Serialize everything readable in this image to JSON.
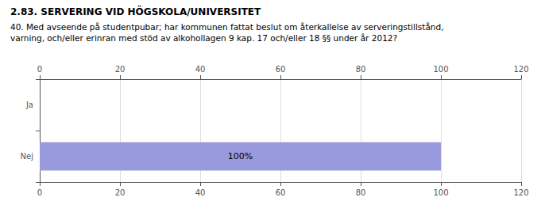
{
  "chart_data": {
    "type": "bar",
    "orientation": "horizontal",
    "title": "2.83. SERVERING VID HÖGSKOLA/UNIVERSITET",
    "annotations": [
      "40. Med avseende på studentpubar; har kommunen fattat beslut om återkallelse av serveringstillstånd,",
      "varning, och/eller erinran med stöd av alkohollagen 9 kap. 17 och/eller 18 §§ under år 2012?"
    ],
    "categories": [
      "Nej",
      "Ja"
    ],
    "values": [
      100,
      0
    ],
    "data_labels": true,
    "value_labels": [
      "100%",
      null
    ],
    "color": "#9999dd",
    "xlim": [
      0,
      120
    ],
    "xticks": [
      0,
      20,
      40,
      60,
      80,
      100,
      120
    ],
    "grid": true
  }
}
